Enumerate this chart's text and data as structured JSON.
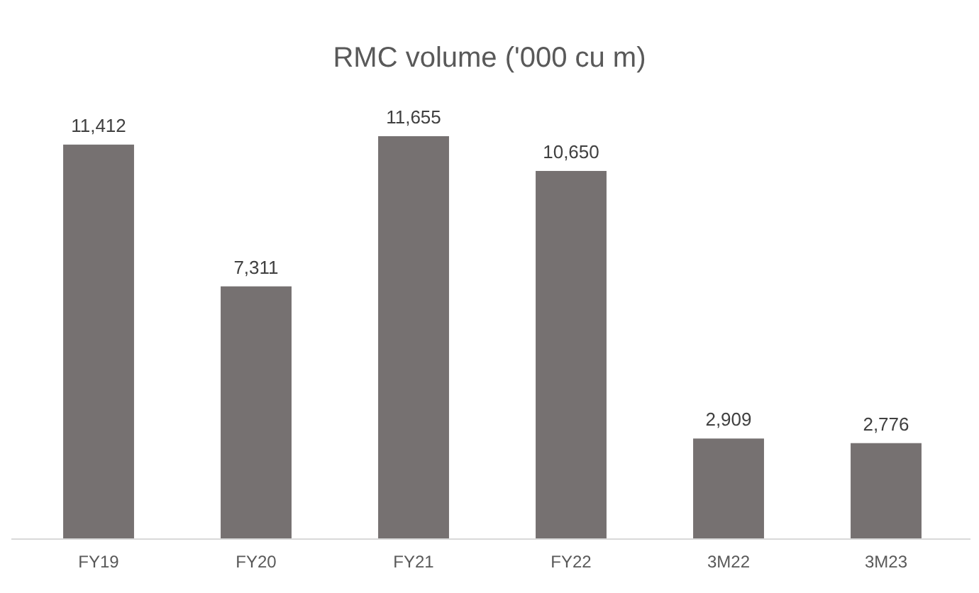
{
  "chart_data": {
    "type": "bar",
    "title": "RMC volume ('000 cu m)",
    "categories": [
      "FY19",
      "FY20",
      "FY21",
      "FY22",
      "3M22",
      "3M23"
    ],
    "values": [
      11412,
      7311,
      11655,
      10650,
      2909,
      2776
    ],
    "value_labels": [
      "11,412",
      "7,311",
      "11,655",
      "10,650",
      "2,909",
      "2,776"
    ],
    "color": "#767171"
  }
}
